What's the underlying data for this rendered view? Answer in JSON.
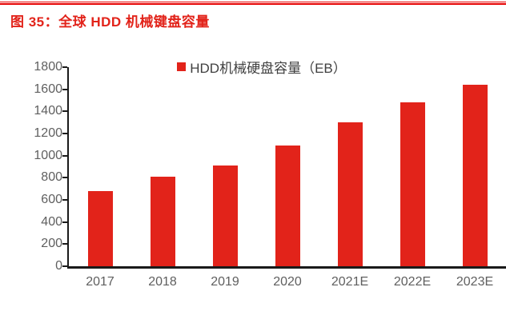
{
  "figure": {
    "title": "图 35：全球 HDD 机械键盘容量"
  },
  "chart_data": {
    "type": "bar",
    "title": "图 35：全球 HDD 机械键盘容量",
    "legend": "HDD机械硬盘容量（EB）",
    "legend_position": "top-center",
    "categories": [
      "2017",
      "2018",
      "2019",
      "2020",
      "2021E",
      "2022E",
      "2023E"
    ],
    "values": [
      680,
      810,
      910,
      1090,
      1300,
      1480,
      1640
    ],
    "xlabel": "",
    "ylabel": "",
    "ylim": [
      0,
      1800
    ],
    "yticks": [
      0,
      200,
      400,
      600,
      800,
      1000,
      1200,
      1400,
      1600,
      1800
    ],
    "grid": false,
    "bar_color": "#e2231a",
    "axis_label_color": "#5f5f5f",
    "axis_line_color": "#1a1a1a"
  },
  "colors": {
    "accent_red": "#e2231a",
    "rule_red": "#e60000",
    "legend_text": "#404040"
  }
}
